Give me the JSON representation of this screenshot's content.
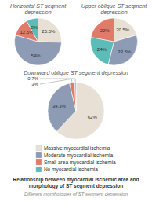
{
  "title": "Relationship between myocardial ischemic area and\nmorphology of ST segment depression",
  "subtitle": "Different morphologies of ST segment depression",
  "chart_data": [
    {
      "type": "pie",
      "title": "Horizontal ST segment depression",
      "values": [
        25.5,
        54,
        12.5,
        8
      ],
      "value_labels": [
        "25.5%",
        "54%",
        "12.5%",
        "8%"
      ],
      "colors": [
        "#e8e0d5",
        "#8d9bb5",
        "#e07b6a",
        "#5bbcb8"
      ],
      "data_labels": true
    },
    {
      "type": "pie",
      "title": "Upper oblique ST segment depression",
      "values": [
        20.5,
        33.5,
        24,
        22
      ],
      "value_labels": [
        "20.5%",
        "33.5%",
        "24%",
        "22%"
      ],
      "colors": [
        "#e8e0d5",
        "#8d9bb5",
        "#5bbcb8",
        "#e07b6a"
      ],
      "data_labels": true
    },
    {
      "type": "pie",
      "title": "Downward oblique ST segment depression",
      "categories": [
        "Massive myocardial ischemia",
        "Moderate myocardial ischemia",
        "Small area myocardial ischemia",
        "No myocardial ischemia"
      ],
      "values": [
        62,
        34.3,
        3,
        0.7
      ],
      "value_labels": [
        "62%",
        "34.3%",
        "3%",
        "0.7%"
      ],
      "colors": [
        "#e8e0d5",
        "#8d9bb5",
        "#e07b6a",
        "#5bbcb8"
      ],
      "data_labels": true,
      "legend": "bottom"
    }
  ]
}
